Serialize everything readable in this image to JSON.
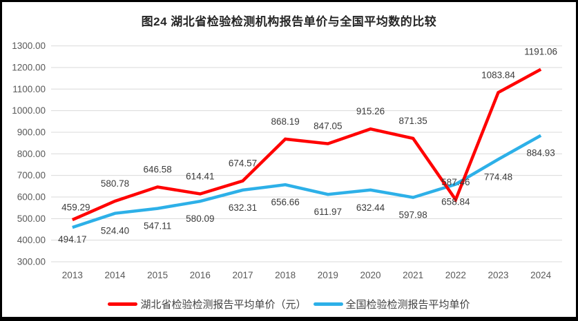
{
  "title": "图24 湖北省检验检测机构报告单价与全国平均数的比较",
  "chart_data": {
    "type": "line",
    "title": "图24 湖北省检验检测机构报告单价与全国平均数的比较",
    "categories": [
      "2013",
      "2014",
      "2015",
      "2016",
      "2017",
      "2018",
      "2019",
      "2020",
      "2021",
      "2022",
      "2023",
      "2024"
    ],
    "series": [
      {
        "name": "湖北省检验检测报告平均单价（元）",
        "color": "#ff0000",
        "values": [
          494.17,
          580.78,
          646.58,
          614.41,
          674.57,
          868.19,
          847.05,
          915.26,
          871.35,
          587.46,
          1083.84,
          1191.06
        ]
      },
      {
        "name": "全国检验检测报告平均单价",
        "color": "#2db0e8",
        "values": [
          459.29,
          524.4,
          547.11,
          580.09,
          632.31,
          656.66,
          611.97,
          632.44,
          597.98,
          658.84,
          774.48,
          884.93
        ]
      }
    ],
    "ylim": [
      300,
      1300
    ],
    "ytick_step": 100,
    "ytick_labels": [
      "300.00",
      "400.00",
      "500.00",
      "600.00",
      "700.00",
      "800.00",
      "900.00",
      "1000.00",
      "1100.00",
      "1200.00",
      "1300.00"
    ],
    "data_labels_visible": true,
    "grid": true,
    "legend_position": "bottom"
  },
  "colors": {
    "gridline": "#d9d9d9",
    "axis_text": "#595959",
    "data_label_text": "#3b3b3b",
    "frame_border": "#000000",
    "background": "#ffffff"
  }
}
